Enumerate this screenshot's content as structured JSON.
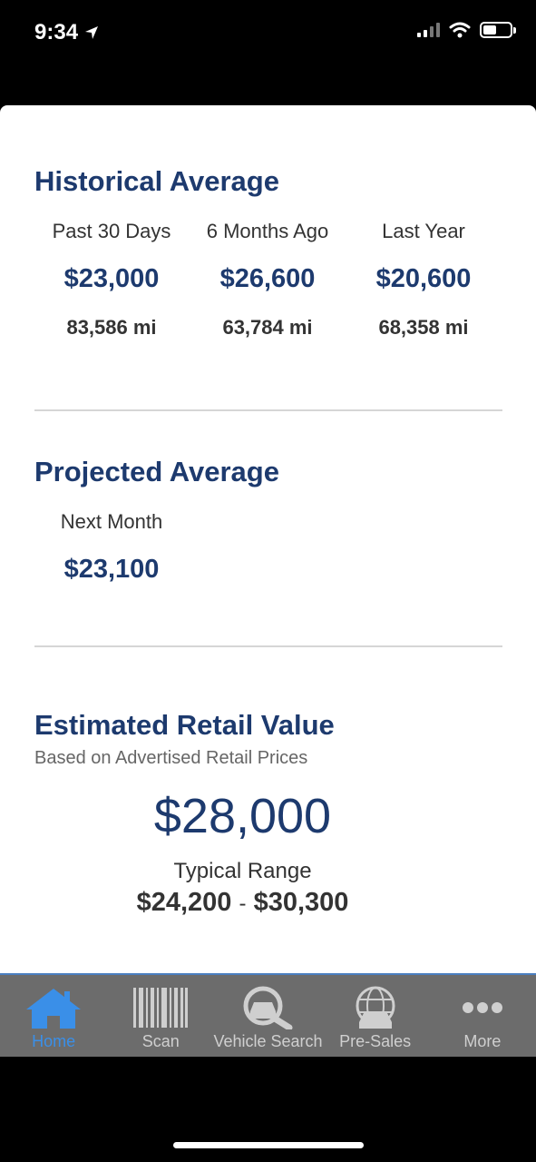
{
  "status": {
    "time": "9:34"
  },
  "historical": {
    "title": "Historical Average",
    "columns": [
      {
        "label": "Past 30 Days",
        "price": "$23,000",
        "miles": "83,586 mi"
      },
      {
        "label": "6 Months Ago",
        "price": "$26,600",
        "miles": "63,784 mi"
      },
      {
        "label": "Last Year",
        "price": "$20,600",
        "miles": "68,358 mi"
      }
    ]
  },
  "projected": {
    "title": "Projected Average",
    "label": "Next Month",
    "price": "$23,100"
  },
  "retail": {
    "title": "Estimated Retail Value",
    "subtitle": "Based on Advertised Retail Prices",
    "value": "$28,000",
    "range_label": "Typical Range",
    "range_low": "$24,200",
    "range_sep": "-",
    "range_high": "$30,300"
  },
  "tabs": [
    {
      "label": "Home",
      "icon": "home-icon",
      "active": true
    },
    {
      "label": "Scan",
      "icon": "barcode-icon",
      "active": false
    },
    {
      "label": "Vehicle Search",
      "icon": "vehicle-search-icon",
      "active": false
    },
    {
      "label": "Pre-Sales",
      "icon": "globe-car-icon",
      "active": false
    },
    {
      "label": "More",
      "icon": "more-icon",
      "active": false
    }
  ],
  "colors": {
    "accent": "#1d3a6e",
    "tab_active": "#3a8fe8",
    "tab_bar": "#6c6c6c"
  }
}
